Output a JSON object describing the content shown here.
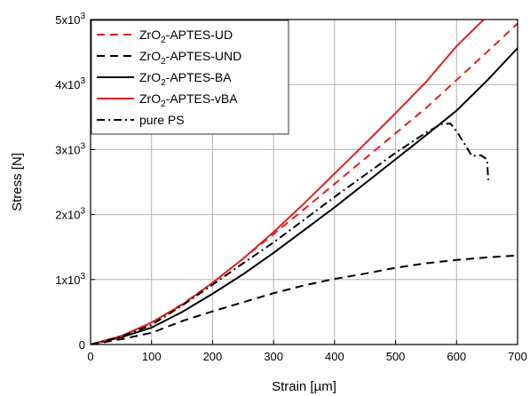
{
  "chart_data": {
    "type": "line",
    "title": "",
    "xlabel": "Strain [µm]",
    "ylabel": "Stress [N]",
    "xlim": [
      0,
      700
    ],
    "ylim": [
      0,
      5000
    ],
    "grid": true,
    "legend_position": "top-left",
    "x_ticks": [
      0,
      100,
      200,
      300,
      400,
      500,
      600,
      700
    ],
    "x_tick_labels": [
      "0",
      "100",
      "200",
      "300",
      "400",
      "500",
      "600",
      "700"
    ],
    "y_ticks": [
      0,
      1000,
      2000,
      3000,
      4000,
      5000
    ],
    "y_tick_labels": [
      {
        "mantissa": "0",
        "exponent": ""
      },
      {
        "mantissa": "1x10",
        "exponent": "3"
      },
      {
        "mantissa": "2x10",
        "exponent": "3"
      },
      {
        "mantissa": "3x10",
        "exponent": "3"
      },
      {
        "mantissa": "4x10",
        "exponent": "3"
      },
      {
        "mantissa": "5x10",
        "exponent": "3"
      }
    ],
    "series": [
      {
        "name": "ZrO2-APTES-UD",
        "name_parts": {
          "pre": "ZrO",
          "sub": "2",
          "post": "-APTES-UD"
        },
        "color": "#e02020",
        "dash": "dashed",
        "x": [
          0,
          50,
          100,
          150,
          200,
          250,
          300,
          350,
          400,
          450,
          500,
          550,
          600,
          650,
          700
        ],
        "y": [
          0,
          130,
          330,
          620,
          950,
          1320,
          1700,
          2080,
          2470,
          2860,
          3250,
          3640,
          4070,
          4500,
          4940
        ]
      },
      {
        "name": "ZrO2-APTES-UND",
        "name_parts": {
          "pre": "ZrO",
          "sub": "2",
          "post": "-APTES-UND"
        },
        "color": "#000000",
        "dash": "dashed",
        "x": [
          0,
          50,
          100,
          150,
          200,
          250,
          300,
          350,
          400,
          450,
          500,
          550,
          600,
          650,
          700
        ],
        "y": [
          0,
          80,
          180,
          360,
          510,
          650,
          790,
          910,
          1010,
          1090,
          1180,
          1250,
          1300,
          1340,
          1370
        ]
      },
      {
        "name": "ZrO2-APTES-BA",
        "name_parts": {
          "pre": "ZrO",
          "sub": "2",
          "post": "-APTES-BA"
        },
        "color": "#000000",
        "dash": "solid",
        "x": [
          0,
          50,
          100,
          150,
          200,
          250,
          300,
          350,
          400,
          450,
          500,
          550,
          600,
          650,
          700
        ],
        "y": [
          0,
          110,
          260,
          500,
          780,
          1080,
          1410,
          1760,
          2110,
          2480,
          2850,
          3220,
          3600,
          4060,
          4560
        ]
      },
      {
        "name": "ZrO2-APTES-vBA",
        "name_parts": {
          "pre": "ZrO",
          "sub": "2",
          "post": "-APTES-vBA"
        },
        "color": "#e02020",
        "dash": "solid",
        "x": [
          0,
          50,
          100,
          150,
          200,
          250,
          300,
          350,
          400,
          450,
          500,
          550,
          600,
          650,
          685
        ],
        "y": [
          0,
          130,
          340,
          610,
          950,
          1320,
          1730,
          2170,
          2630,
          3090,
          3560,
          4040,
          4590,
          5050,
          5240
        ]
      },
      {
        "name": "pure PS",
        "name_parts": {
          "pre": "pure PS",
          "sub": "",
          "post": ""
        },
        "color": "#000000",
        "dash": "dashdot",
        "x": [
          0,
          50,
          100,
          150,
          200,
          250,
          300,
          350,
          400,
          450,
          500,
          550,
          575,
          590,
          600,
          615,
          625,
          640,
          650,
          652
        ],
        "y": [
          0,
          120,
          300,
          600,
          920,
          1250,
          1570,
          1920,
          2270,
          2610,
          2950,
          3260,
          3390,
          3400,
          3280,
          3060,
          2900,
          2910,
          2850,
          2530
        ]
      }
    ]
  }
}
